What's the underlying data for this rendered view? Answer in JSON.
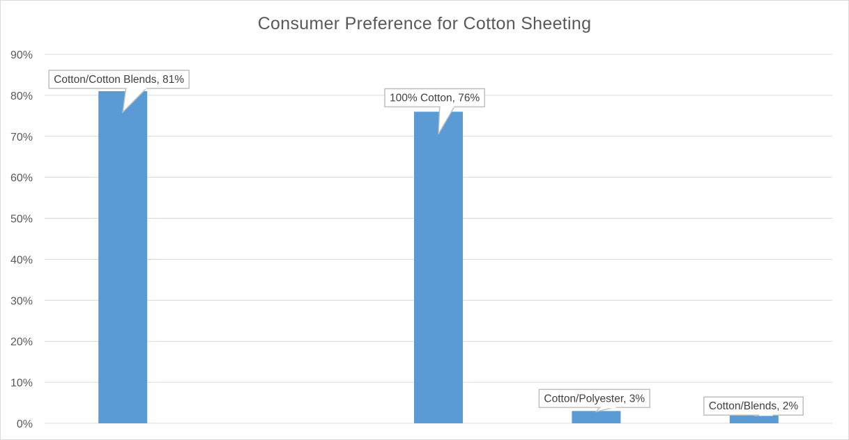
{
  "chart_data": {
    "type": "bar",
    "title": "Consumer Preference for Cotton Sheeting",
    "xlabel": "",
    "ylabel": "",
    "categories": [
      "Cotton/Cotton Blends",
      "",
      "100% Cotton",
      "Cotton/Polyester",
      "Cotton/Blends"
    ],
    "values": [
      81,
      null,
      76,
      3,
      2
    ],
    "data_labels": [
      "Cotton/Cotton Blends, 81%",
      "",
      "100% Cotton, 76%",
      "Cotton/Polyester, 3%",
      "Cotton/Blends, 2%"
    ],
    "ylim": [
      0,
      90
    ],
    "yticks": [
      0,
      10,
      20,
      30,
      40,
      50,
      60,
      70,
      80,
      90
    ],
    "ytick_labels": [
      "0%",
      "10%",
      "20%",
      "30%",
      "40%",
      "50%",
      "60%",
      "70%",
      "80%",
      "90%"
    ],
    "grid": true,
    "legend": "none",
    "bar_color": "#5b9bd5",
    "grid_color": "#d9d9d9"
  }
}
